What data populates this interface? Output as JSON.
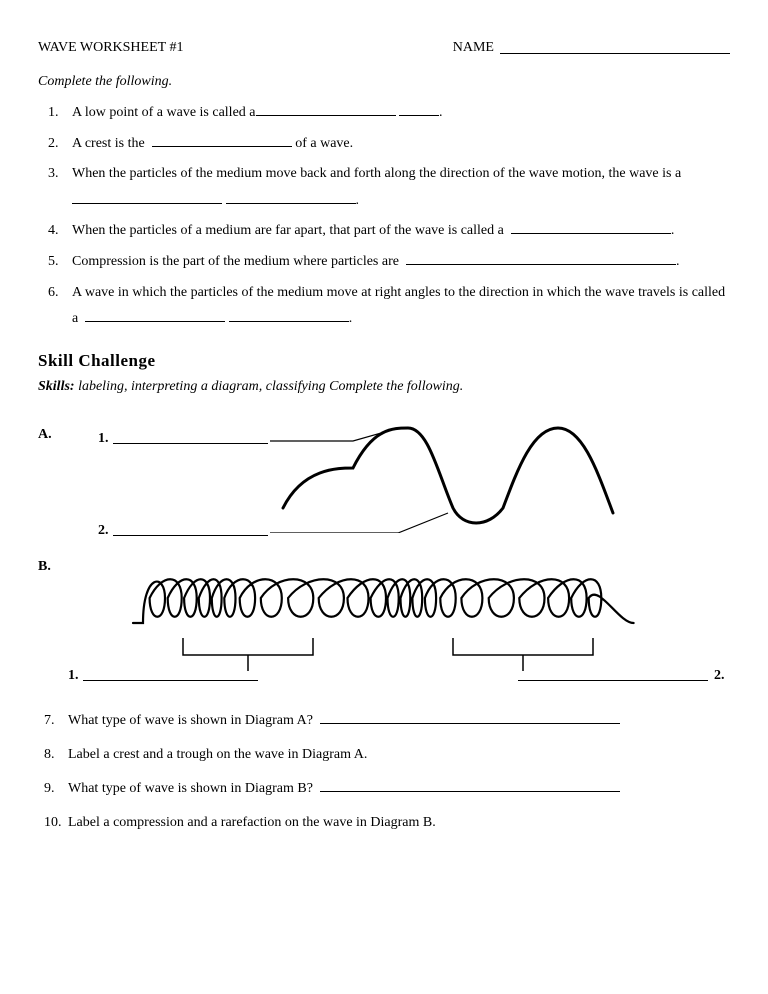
{
  "header": {
    "title": "WAVE WORKSHEET #1",
    "name_label": "NAME"
  },
  "instructions": "Complete the following.",
  "questions_top": [
    "A low point of a wave is called a",
    "A crest is the",
    "of a wave.",
    "When the particles of the medium move back and forth along the direction of the wave motion, the wave is a",
    "When the particles of a medium are far apart, that part of the wave is called a",
    "Compression is the part of the medium where particles are",
    "A wave in which the particles of the medium move at right angles to the direction in which the wave travels is called a"
  ],
  "skill_heading": "Skill Challenge",
  "skills_label": "Skills:",
  "skills_body": "labeling, interpreting a diagram, classifying  Complete the following.",
  "diagram": {
    "label_a": "A.",
    "label_b": "B.",
    "num1": "1.",
    "num2": "2."
  },
  "questions_bottom": {
    "q7": "What type of wave is shown in Diagram A?",
    "q8": "Label a crest and a trough on the wave in Diagram A.",
    "q9": "What type of wave is shown in Diagram B?",
    "q10": "Label a compression and a rarefaction on the wave in Diagram B."
  },
  "numbers": {
    "n1": "1.",
    "n2": "2.",
    "n3": "3.",
    "n4": "4.",
    "n5": "5.",
    "n6": "6.",
    "n7": "7.",
    "n8": "8.",
    "n9": "9.",
    "n10": "10."
  },
  "svg": {
    "stroke": "#000000",
    "stroke_width_wave": 3,
    "stroke_width_coil": 2.2
  }
}
